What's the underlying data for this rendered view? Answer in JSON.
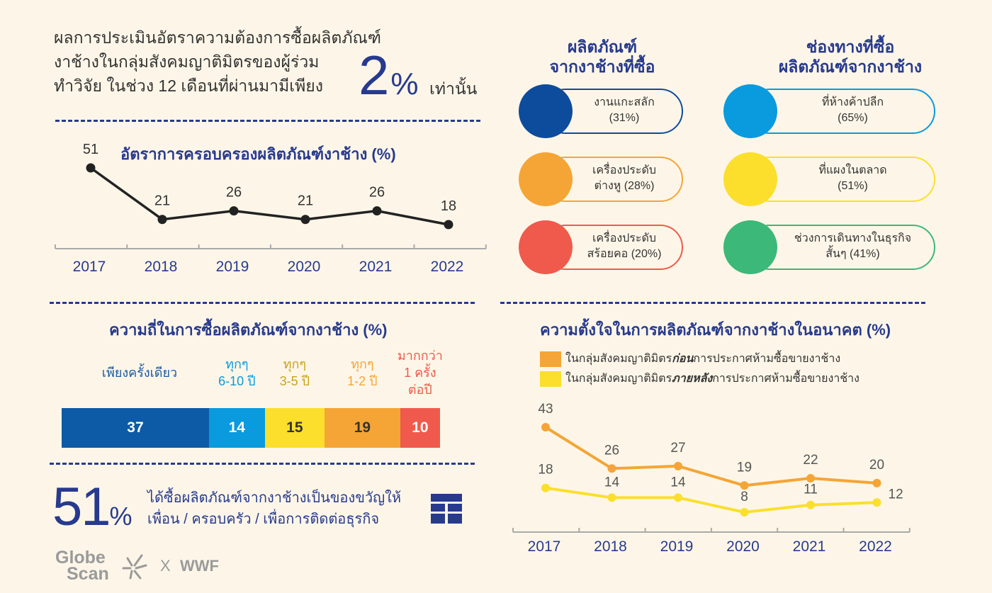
{
  "intro": {
    "line1": "ผลการประเมินอัตราความต้องการซื้อผลิตภัณฑ์",
    "line2": "งาช้างในกลุ่มสังคมญาติมิตรของผู้ร่วม",
    "line3": "ทำวิจัย ในช่วง 12 เดือนที่ผ่านมามีเพียง",
    "big_value": "2",
    "big_unit": "%",
    "suffix": "เท่านั้น"
  },
  "ownership": {
    "title": "อัตราการครอบครองผลิตภัณฑ์งาช้าง (%)"
  },
  "products": {
    "title_line1": "ผลิตภัณฑ์",
    "title_line2": "จากงาช้างที่ซื้อ",
    "items": [
      {
        "line1": "งานแกะสลัก",
        "line2": "(31%)",
        "color": "#0d4c9c"
      },
      {
        "line1": "เครื่องประดับ",
        "line2": "ต่างหู (28%)",
        "color": "#f5a535"
      },
      {
        "line1": "เครื่องประดับ",
        "line2": "สร้อยคอ (20%)",
        "color": "#ef5a4c"
      }
    ]
  },
  "channels": {
    "title_line1": "ช่องทางที่ซื้อ",
    "title_line2": "ผลิตภัณฑ์จากงาช้าง",
    "items": [
      {
        "line1": "ที่ห้างค้าปลีก",
        "line2": "(65%)",
        "color": "#0a9ade"
      },
      {
        "line1": "ที่แผงในตลาด",
        "line2": "(51%)",
        "color": "#fbdf2c"
      },
      {
        "line1": "ช่วงการเดินทางในธุรกิจ",
        "line2": "สั้นๆ (41%)",
        "color": "#3cb878"
      }
    ]
  },
  "frequency": {
    "title": "ความถี่ในการซื้อผลิตภัณฑ์จากงาช้าง (%)",
    "labels": [
      {
        "lines": [
          "เพียงครั้งเดียว"
        ],
        "color": "#1a5aa6"
      },
      {
        "lines": [
          "ทุกๆ",
          "6-10 ปี"
        ],
        "color": "#0a9ade"
      },
      {
        "lines": [
          "ทุกๆ",
          "3-5 ปี"
        ],
        "color": "#c9a21a"
      },
      {
        "lines": [
          "ทุกๆ",
          "1-2 ปี"
        ],
        "color": "#f5a535"
      },
      {
        "lines": [
          "มากกว่า",
          "1 ครั้ง",
          "ต่อปี"
        ],
        "color": "#ef5a4c"
      }
    ]
  },
  "gift": {
    "value": "51",
    "unit": "%",
    "line1": "ได้ซื้อผลิตภัณฑ์จากงาช้างเป็นของขวัญให้",
    "line2": "เพื่อน / ครอบครัว / เพื่อการติดต่อธุรกิจ"
  },
  "intention": {
    "title": "ความตั้งใจในการผลิตภัณฑ์จากงาช้างในอนาคต (%)",
    "legend_before_pre": "ในกลุ่มสังคมญาติมิตร",
    "legend_before_em": "ก่อน",
    "legend_before_post": "การประกาศห้ามซื้อขายงาช้าง",
    "legend_after_pre": "ในกลุ่มสังคมญาติมิตร",
    "legend_after_em": "ภายหลัง",
    "legend_after_post": "การประกาศห้ามซื้อขายงาช้าง"
  },
  "logos": {
    "globe": "Globe",
    "scan": "Scan",
    "x": "X",
    "wwf": "WWF"
  },
  "chart_data": [
    {
      "type": "line",
      "title": "อัตราการครอบครองผลิตภัณฑ์งาช้าง (%)",
      "categories": [
        "2017",
        "2018",
        "2019",
        "2020",
        "2021",
        "2022"
      ],
      "values": [
        51,
        21,
        26,
        21,
        26,
        18
      ],
      "color": "#222222"
    },
    {
      "type": "bar",
      "title": "ความถี่ในการซื้อผลิตภัณฑ์จากงาช้าง (%)",
      "stacked": true,
      "categories": [
        "เพียงครั้งเดียว",
        "ทุกๆ 6-10 ปี",
        "ทุกๆ 3-5 ปี",
        "ทุกๆ 1-2 ปี",
        "มากกว่า 1 ครั้ง ต่อปี"
      ],
      "values": [
        37,
        14,
        15,
        19,
        10
      ],
      "colors": [
        "#0d5aa6",
        "#0a9ade",
        "#fbdf2c",
        "#f5a535",
        "#ef5a4c"
      ],
      "text_colors": [
        "#ffffff",
        "#ffffff",
        "#333333",
        "#333333",
        "#ffffff"
      ]
    },
    {
      "type": "line",
      "title": "ความตั้งใจในการผลิตภัณฑ์จากงาช้างในอนาคต (%)",
      "categories": [
        "2017",
        "2018",
        "2019",
        "2020",
        "2021",
        "2022"
      ],
      "series": [
        {
          "name": "ในกลุ่มสังคมญาติมิตรก่อนการประกาศห้ามซื้อขายงาช้าง",
          "values": [
            43,
            26,
            27,
            19,
            22,
            20
          ],
          "color": "#f5a535"
        },
        {
          "name": "ในกลุ่มสังคมญาติมิตรภายหลังการประกาศห้ามซื้อขายงาช้าง",
          "values": [
            18,
            14,
            14,
            8,
            11,
            12
          ],
          "color": "#fbdf2c"
        }
      ]
    }
  ]
}
